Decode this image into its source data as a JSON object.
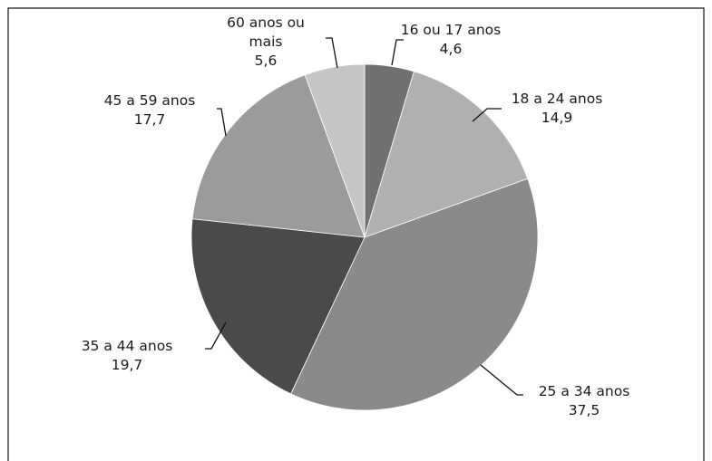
{
  "chart_data": {
    "type": "pie",
    "title": "",
    "slices": [
      {
        "label": "16 ou 17 anos",
        "value": 4.6,
        "value_text": "4,6",
        "color": "#707070"
      },
      {
        "label": "18 a 24 anos",
        "value": 14.9,
        "value_text": "14,9",
        "color": "#b0b0b0"
      },
      {
        "label": "25 a 34 anos",
        "value": 37.5,
        "value_text": "37,5",
        "color": "#8a8a8a"
      },
      {
        "label": "35 a 44 anos",
        "value": 19.7,
        "value_text": "19,7",
        "color": "#4a4a4a"
      },
      {
        "label": "45 a 59 anos",
        "value": 17.7,
        "value_text": "17,7",
        "color": "#9b9b9b"
      },
      {
        "label": "60 anos ou mais",
        "label_lines": [
          "60 anos ou",
          "mais"
        ],
        "value": 5.6,
        "value_text": "5,6",
        "color": "#c6c6c6"
      }
    ],
    "legend": "none"
  }
}
